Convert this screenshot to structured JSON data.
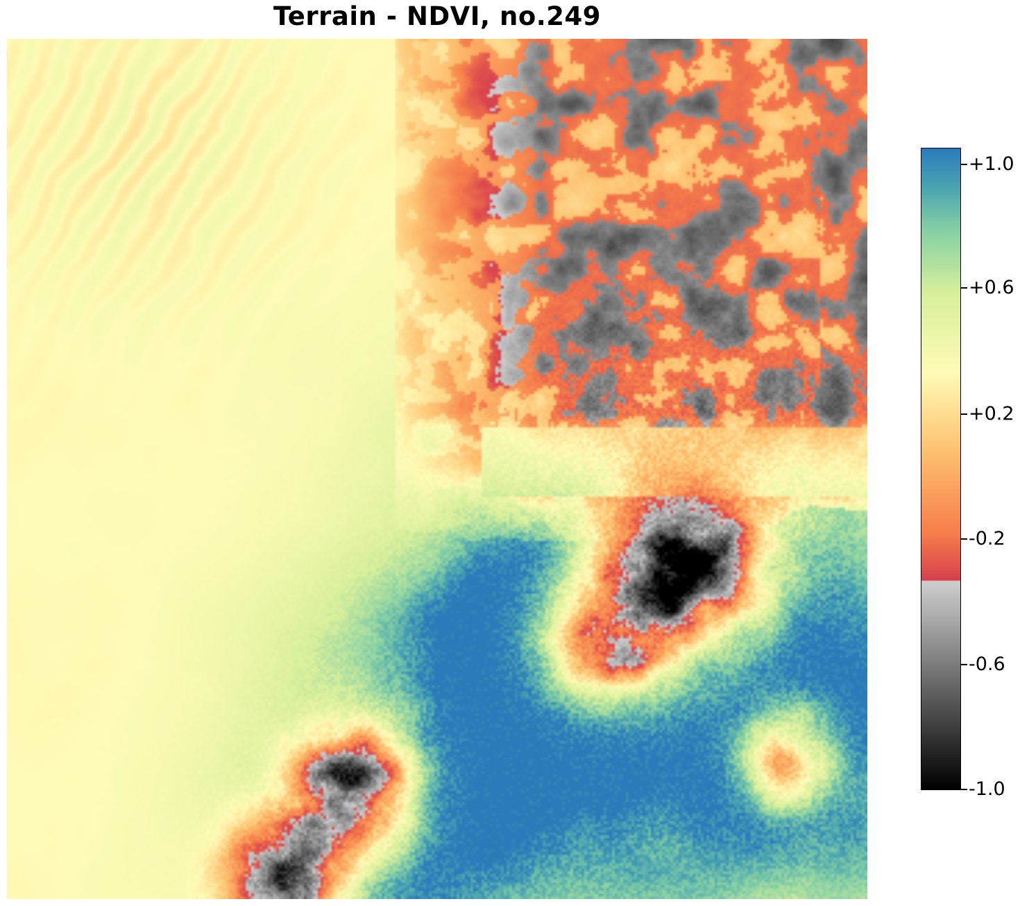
{
  "title": "Terrain - NDVI, no.249",
  "chart_data": {
    "type": "heatmap",
    "title": "Terrain - NDVI, no.249",
    "colorbar": {
      "min": -1.0,
      "max": 1.0,
      "ticks": [
        {
          "value": 1.0,
          "label": "+1.0"
        },
        {
          "value": 0.6,
          "label": "+0.6"
        },
        {
          "value": 0.2,
          "label": "+0.2"
        },
        {
          "value": -0.2,
          "label": "-0.2"
        },
        {
          "value": -0.6,
          "label": "-0.6"
        },
        {
          "value": -1.0,
          "label": "-1.0"
        }
      ],
      "colormap_negative": "gray (black at -1.0 to light gray near -0.35)",
      "colormap_positive": "Spectral (red near -0.35 through yellow near +0.3 to blue at +1.0)",
      "colors": {
        "neg_dark": "#000000",
        "neg_light": "#cfcfcf",
        "red": "#d6404e",
        "orange": "#f67e4b",
        "light_orange": "#fdbf6f",
        "yellow": "#fefbb6",
        "light_green": "#d7ef9b",
        "green": "#84cfa5",
        "teal": "#4aa4b1",
        "blue": "#2b7bba"
      }
    }
  }
}
